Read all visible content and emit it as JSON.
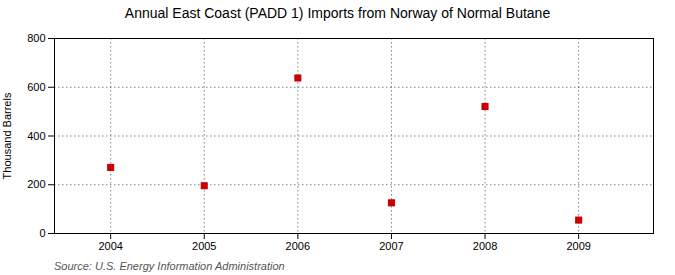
{
  "chart_data": {
    "type": "scatter",
    "title": "Annual East Coast (PADD 1) Imports from Norway of Normal Butane",
    "ylabel": "Thousand Barrels",
    "source": "Source: U.S. Energy Information Administration",
    "x": [
      2004,
      2005,
      2006,
      2007,
      2008,
      2009
    ],
    "values": [
      271,
      196,
      638,
      126,
      521,
      55
    ],
    "xlim": [
      2003.4,
      2009.8
    ],
    "xticks": [
      2004,
      2005,
      2006,
      2007,
      2008,
      2009
    ],
    "ylim": [
      0,
      800
    ],
    "yticks": [
      0,
      200,
      400,
      600,
      800
    ],
    "color": "#cc0000",
    "marker": "square",
    "grid": true
  }
}
